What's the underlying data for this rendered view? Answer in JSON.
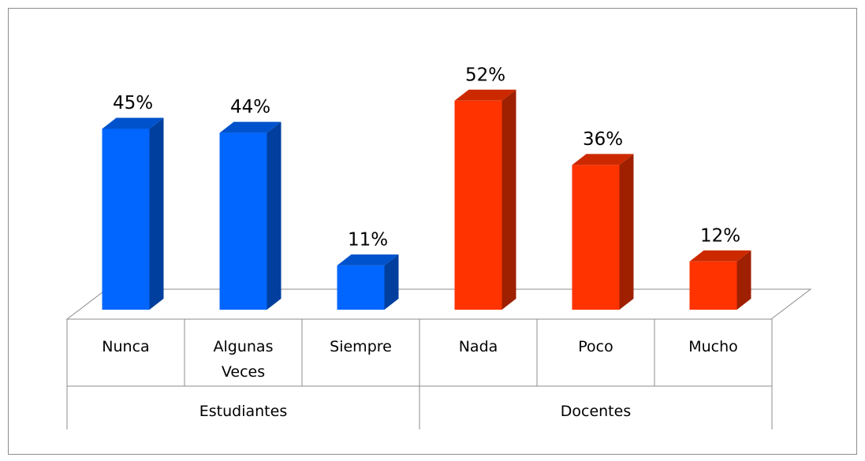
{
  "chart_data": {
    "type": "bar3d",
    "groups": [
      {
        "name": "Estudiantes",
        "color": "#0066ff",
        "categories": [
          "Nunca",
          "Algunas Veces",
          "Siempre"
        ],
        "values": [
          45,
          44,
          11
        ],
        "value_labels": [
          "45%",
          "44%",
          "11%"
        ]
      },
      {
        "name": "Docentes",
        "color": "#ff3300",
        "categories": [
          "Nada",
          "Poco",
          "Mucho"
        ],
        "values": [
          52,
          36,
          12
        ],
        "value_labels": [
          "52%",
          "36%",
          "12%"
        ]
      }
    ]
  }
}
